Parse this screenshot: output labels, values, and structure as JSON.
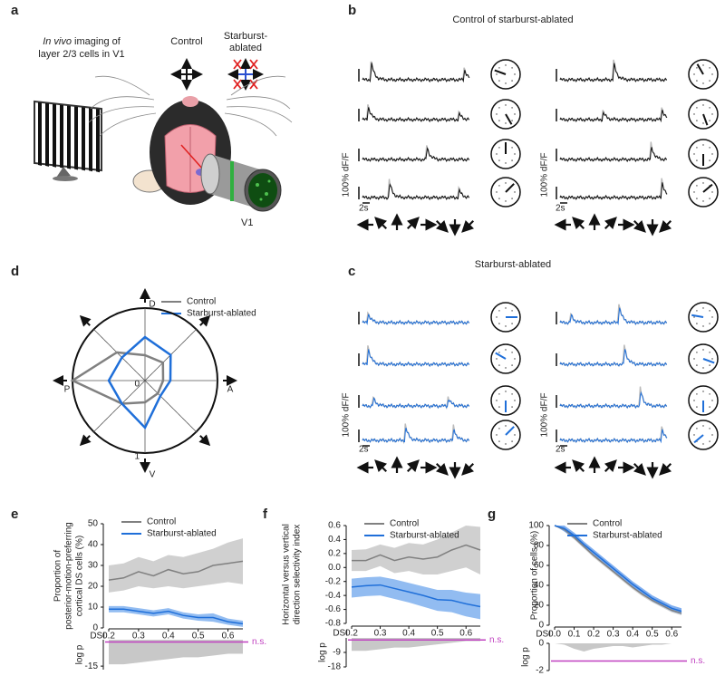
{
  "panel_a": {
    "label": "a",
    "title_italic": "In vivo",
    "title_rest": "imaging of",
    "title_line2": "layer 2/3 cells in V1",
    "control": "Control",
    "ablated_line1": "Starburst-",
    "ablated_line2": "ablated",
    "region": "V1"
  },
  "panel_b": {
    "label": "b",
    "title": "Control of starburst-ablated",
    "scale_y": "100% dF/F",
    "scale_x": "2s"
  },
  "panel_c": {
    "label": "c",
    "title": "Starburst-ablated",
    "scale_y": "100% dF/F",
    "scale_x": "2s"
  },
  "chart_data": [
    {
      "type": "polar",
      "label": "d",
      "categories": [
        "D",
        null,
        "A",
        null,
        "V",
        null,
        "P",
        null
      ],
      "rlim": [
        0,
        1
      ],
      "rticks": [
        0,
        1
      ],
      "series": [
        {
          "name": "Control",
          "color": "#808080",
          "values": [
            0.35,
            0.35,
            0.25,
            0.25,
            0.3,
            0.45,
            1.0,
            0.55
          ]
        },
        {
          "name": "Starburst-ablated",
          "color": "#1f6fd9",
          "values": [
            0.6,
            0.5,
            0.35,
            0.3,
            0.65,
            0.45,
            0.5,
            0.45
          ]
        }
      ]
    },
    {
      "type": "line",
      "label": "e",
      "ylabel": [
        "Proportion of",
        "posterior-motion-preferring",
        "cortical DS cells (%)"
      ],
      "xlabel": "DSI",
      "x": [
        0.2,
        0.25,
        0.3,
        0.35,
        0.4,
        0.45,
        0.5,
        0.55,
        0.6,
        0.65
      ],
      "xlim": [
        0.2,
        0.65
      ],
      "xticks": [
        0.2,
        0.3,
        0.4,
        0.5,
        0.6
      ],
      "ylim": [
        0,
        50
      ],
      "yticks": [
        0,
        10,
        20,
        30,
        40,
        50
      ],
      "series": [
        {
          "name": "Control",
          "color": "#808080",
          "band_color": "#c8c8c8",
          "values": [
            23,
            24,
            27,
            25,
            28,
            26,
            27,
            30,
            31,
            32
          ],
          "lower": [
            17,
            18,
            20,
            19,
            20,
            19,
            20,
            21,
            22,
            21
          ],
          "upper": [
            30,
            31,
            34,
            32,
            35,
            34,
            36,
            38,
            41,
            43
          ]
        },
        {
          "name": "Starburst-ablated",
          "color": "#1f6fd9",
          "band_color": "#7fb0ef",
          "values": [
            9,
            9,
            8,
            7,
            8,
            6,
            5,
            5,
            3,
            2
          ],
          "lower": [
            7.5,
            7.5,
            6.5,
            5.5,
            6.5,
            4.5,
            3.5,
            3,
            1.5,
            0.5
          ],
          "upper": [
            10.5,
            10.5,
            9.5,
            8.5,
            9.5,
            7.5,
            6.5,
            7,
            4.5,
            3.5
          ]
        }
      ],
      "logp": {
        "ylabel": "log p",
        "ylim": [
          -17,
          0
        ],
        "yticks": [
          -15
        ],
        "values": [
          -14,
          -14,
          -13,
          -12,
          -11,
          -10,
          -10,
          -9,
          -8,
          -8
        ],
        "threshold": -1.3,
        "threshold_label": "n.s.",
        "color": "#c040c0"
      }
    },
    {
      "type": "line",
      "label": "f",
      "ylabel": [
        "Horizontal versus vertical",
        "direction selectivity index"
      ],
      "xlabel": "DSI",
      "x": [
        0.2,
        0.25,
        0.3,
        0.35,
        0.4,
        0.45,
        0.5,
        0.55,
        0.6,
        0.65
      ],
      "xlim": [
        0.2,
        0.65
      ],
      "xticks": [
        0.2,
        0.3,
        0.4,
        0.5,
        0.6
      ],
      "ylim": [
        -0.8,
        0.6
      ],
      "yticks": [
        0.6,
        0.4,
        0.2,
        {
          "value": 0,
          "label": "0.0"
        },
        -0.2,
        -0.4,
        -0.6,
        -0.8
      ],
      "series": [
        {
          "name": "Control",
          "color": "#808080",
          "band_color": "#c8c8c8",
          "values": [
            0.1,
            0.1,
            0.18,
            0.1,
            0.15,
            0.12,
            0.15,
            0.25,
            0.32,
            0.25
          ],
          "lower": [
            -0.05,
            -0.05,
            0.02,
            -0.08,
            -0.05,
            -0.1,
            -0.1,
            -0.05,
            0.0,
            -0.1
          ],
          "upper": [
            0.25,
            0.26,
            0.33,
            0.28,
            0.35,
            0.33,
            0.4,
            0.5,
            0.6,
            0.58
          ]
        },
        {
          "name": "Starburst-ablated",
          "color": "#1f6fd9",
          "band_color": "#7fb0ef",
          "values": [
            -0.28,
            -0.26,
            -0.25,
            -0.3,
            -0.35,
            -0.4,
            -0.46,
            -0.47,
            -0.52,
            -0.56
          ],
          "lower": [
            -0.43,
            -0.41,
            -0.4,
            -0.45,
            -0.5,
            -0.56,
            -0.62,
            -0.64,
            -0.7,
            -0.74
          ],
          "upper": [
            -0.16,
            -0.14,
            -0.13,
            -0.17,
            -0.22,
            -0.27,
            -0.32,
            -0.32,
            -0.36,
            -0.38
          ]
        }
      ],
      "logp": {
        "ylabel": "log p",
        "ylim": [
          -18,
          0
        ],
        "yticks": [
          -9,
          -18
        ],
        "values": [
          -8,
          -8,
          -7,
          -6,
          -6,
          -5,
          -4,
          -3,
          -2,
          -2
        ],
        "threshold": -1.3,
        "threshold_label": "n.s.",
        "color": "#c040c0"
      }
    },
    {
      "type": "line",
      "label": "g",
      "ylabel": [
        "Proportion of cells (%)"
      ],
      "xlabel": "DSI",
      "x": [
        0,
        0.05,
        0.1,
        0.15,
        0.2,
        0.25,
        0.3,
        0.35,
        0.4,
        0.45,
        0.5,
        0.55,
        0.6,
        0.65
      ],
      "xlim": [
        0,
        0.65
      ],
      "xticks": [
        {
          "value": 0,
          "label": "0.0"
        },
        0.1,
        0.2,
        0.3,
        0.4,
        0.5,
        0.6
      ],
      "ylim": [
        0,
        100
      ],
      "yticks": [
        0,
        20,
        40,
        60,
        80,
        100
      ],
      "series": [
        {
          "name": "Control",
          "color": "#808080",
          "band_color": "#c8c8c8",
          "values": [
            100,
            96,
            88,
            79,
            70,
            62,
            54,
            46,
            38,
            31,
            25,
            20,
            15,
            12
          ],
          "lower": [
            100,
            94,
            86,
            77,
            68,
            60,
            52,
            44,
            36,
            29,
            23,
            18,
            13,
            10
          ],
          "upper": [
            100,
            98,
            90,
            81,
            72,
            64,
            56,
            48,
            40,
            33,
            27,
            22,
            17,
            14
          ]
        },
        {
          "name": "Starburst-ablated",
          "color": "#1f6fd9",
          "band_color": "#6aa0ec",
          "values": [
            100,
            97,
            90,
            81,
            73,
            65,
            57,
            49,
            41,
            34,
            27,
            22,
            17,
            14
          ],
          "lower": [
            100,
            94,
            87,
            78,
            70,
            62,
            54,
            46,
            38,
            31,
            24,
            19,
            14,
            11
          ],
          "upper": [
            100,
            100,
            93,
            84,
            76,
            68,
            60,
            52,
            44,
            37,
            30,
            25,
            20,
            17
          ]
        }
      ],
      "logp": {
        "ylabel": "log p",
        "ylim": [
          -2,
          0
        ],
        "yticks": [
          0,
          -2
        ],
        "values": [
          0,
          -0.1,
          -0.4,
          -0.6,
          -0.4,
          -0.3,
          -0.2,
          -0.2,
          -0.3,
          -0.2,
          -0.1,
          -0.1,
          0,
          0
        ],
        "threshold": -1.3,
        "threshold_label": "n.s.",
        "color": "#c040c0"
      }
    }
  ]
}
